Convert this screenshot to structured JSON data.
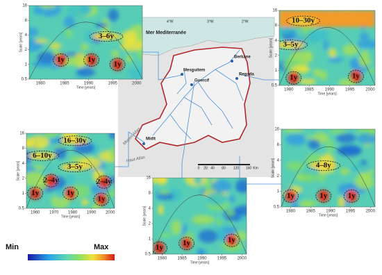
{
  "panels": [
    {
      "ylabel": "Scale [years]",
      "xlabel": "Time [years]",
      "xticks": [
        1980,
        1985,
        1990,
        1995,
        2000
      ],
      "yticks": [
        0.5,
        1,
        2,
        4,
        8,
        16
      ],
      "annotations": [
        "3–6y",
        "1y",
        "1y",
        "1y"
      ]
    },
    {
      "ylabel": "Scale [years]",
      "xlabel": "Time [years]",
      "xticks": [
        1980,
        1985,
        1990,
        1995,
        2000
      ],
      "yticks": [
        0.5,
        1,
        2,
        4,
        8,
        16
      ],
      "annotations": [
        "10–30y",
        "3–5y",
        "1y",
        "1y"
      ]
    },
    {
      "ylabel": "Scale [years]",
      "xlabel": "Time [years]",
      "xticks": [
        1960,
        1970,
        1980,
        1990,
        2000
      ],
      "yticks": [
        0.5,
        1,
        2,
        4,
        8,
        16
      ],
      "annotations": [
        "16–30y",
        "6–10y",
        "3–5y",
        "2–4y",
        "2–4y",
        "1y",
        "1y",
        "1y"
      ]
    },
    {
      "ylabel": "Scale [years]",
      "xlabel": "Time [years]",
      "xticks": [
        1980,
        1985,
        1990,
        1995,
        2000
      ],
      "yticks": [
        0.5,
        1,
        2,
        4,
        8,
        16
      ],
      "annotations": [
        "4–8y",
        "1y",
        "1y",
        "1y"
      ]
    },
    {
      "ylabel": "Scale [years]",
      "xlabel": "Time [years]",
      "xticks": [
        1980,
        1985,
        1990,
        1995,
        2000
      ],
      "yticks": [
        0.5,
        1,
        2,
        4,
        8,
        16
      ],
      "annotations": [
        "1y",
        "1y",
        "1y"
      ]
    }
  ],
  "map": {
    "sea": "Mer Mediterranée",
    "longitudes": [
      "4°W",
      "3°W",
      "2°W"
    ],
    "stations": [
      "Berkane",
      "Mesguitem",
      "Guercif",
      "Regada",
      "Midlt"
    ],
    "ranges": [
      "Moyen Atlas",
      "Haut Atlas"
    ],
    "scale": [
      "0",
      "20",
      "40",
      "80",
      "120",
      "160",
      "Km"
    ]
  },
  "colorbar": {
    "min": "Min",
    "max": "Max"
  }
}
